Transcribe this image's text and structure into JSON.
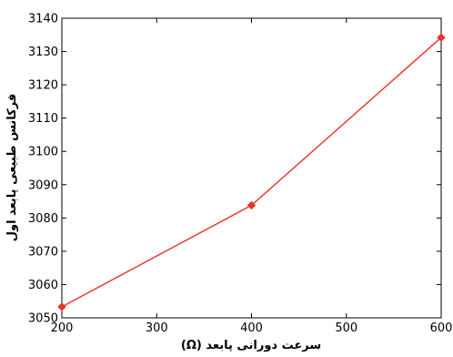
{
  "chart_data": {
    "type": "line",
    "title": "",
    "xlabel": "سرعت دورانی پابعد (Ω)",
    "ylabel": "فرکانس طبیعی پابعد اول",
    "xlim": [
      200,
      600
    ],
    "ylim": [
      3050,
      3140
    ],
    "xticks": [
      200,
      300,
      400,
      500,
      600
    ],
    "yticks": [
      3050,
      3060,
      3070,
      3080,
      3090,
      3100,
      3110,
      3120,
      3130,
      3140
    ],
    "grid": false,
    "series": [
      {
        "color": "#e8332a",
        "marker": "diamond",
        "x": [
          200,
          400,
          600
        ],
        "y": [
          3053.3,
          3083.8,
          3134.2
        ]
      }
    ]
  }
}
